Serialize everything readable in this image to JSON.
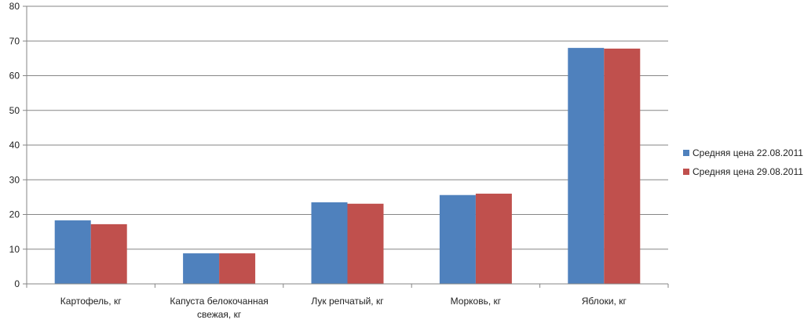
{
  "chart_data": {
    "type": "bar",
    "title": "",
    "xlabel": "",
    "ylabel": "",
    "ylim": [
      0,
      80
    ],
    "yticks": [
      0,
      10,
      20,
      30,
      40,
      50,
      60,
      70,
      80
    ],
    "grid": true,
    "legend_position": "right",
    "categories": [
      [
        "Картофель, кг"
      ],
      [
        "Капуста белокочанная",
        "свежая, кг"
      ],
      [
        "Лук репчатый, кг"
      ],
      [
        "Морковь, кг"
      ],
      [
        "Яблоки, кг"
      ]
    ],
    "series": [
      {
        "name": "Средняя цена 22.08.2011",
        "color": "#4f81bd",
        "values": [
          18.3,
          8.8,
          23.5,
          25.6,
          68.0
        ]
      },
      {
        "name": "Средняя цена 29.08.2011",
        "color": "#c0504d",
        "values": [
          17.2,
          8.8,
          23.1,
          26.0,
          67.8
        ]
      }
    ]
  }
}
